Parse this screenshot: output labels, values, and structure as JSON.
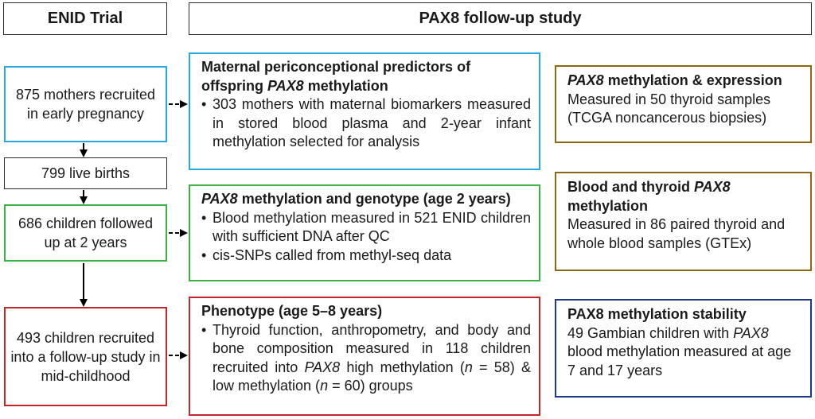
{
  "headers": {
    "enid": "ENID Trial",
    "pax8": "PAX8 follow-up study"
  },
  "left_boxes": [
    {
      "text": "875 mothers recruited in early pregnancy",
      "color": "#29a8e0"
    },
    {
      "text": "799 live births",
      "color": "#2a2a2a"
    },
    {
      "text": "686 children followed up at 2 years",
      "color": "#3cb043"
    },
    {
      "text": "493 children recruited into a follow-up study in mid-childhood",
      "color": "#c0272d"
    }
  ],
  "middle_boxes": [
    {
      "title_pre": "Maternal periconceptional predictors of offspring ",
      "title_em": "PAX8",
      "title_post": " methylation",
      "color": "#29a8e0",
      "bullets": [
        {
          "pre": "303 mothers with maternal biomarkers measured in stored blood plasma and 2-year infant methylation selected for analysis"
        }
      ]
    },
    {
      "title_pre": "",
      "title_em": "PAX8",
      "title_post": " methylation and genotype (age 2 years)",
      "color": "#3cb043",
      "bullets": [
        {
          "pre": "Blood methylation measured in 521 ENID children with sufficient DNA after QC"
        },
        {
          "pre": "cis-SNPs called from methyl-seq data"
        }
      ]
    },
    {
      "title_pre": "Phenotype (age 5–8 years)",
      "title_em": "",
      "title_post": "",
      "color": "#c0272d",
      "bullets": [
        {
          "pre": "Thyroid function, anthropometry, and body and bone composition measured in 118 children recruited into ",
          "em1": "PAX8",
          "mid1": " high methylation (",
          "em2": "n",
          "mid2": " = 58) & low methylation (",
          "em3": "n",
          "post": " = 60) groups"
        }
      ]
    }
  ],
  "right_boxes": [
    {
      "title_pre": "",
      "title_em": "PAX8",
      "title_post": " methylation & expression",
      "body_pre": "Measured in 50 thyroid samples (TCGA noncancerous biopsies)",
      "body_em": "",
      "body_post": "",
      "color": "#8b6914"
    },
    {
      "title_pre": "Blood and thyroid ",
      "title_em": "PAX8",
      "title_post": " methylation",
      "body_pre": "Measured in 86 paired thyroid and whole blood samples (GTEx)",
      "body_em": "",
      "body_post": "",
      "color": "#8b6914"
    },
    {
      "title_pre": "PAX8 methylation stability",
      "title_em": "",
      "title_post": "",
      "body_pre": "49 Gambian children with ",
      "body_em": "PAX8",
      "body_post": " blood methylation measured at age 7 and 17 years",
      "color": "#1f3a8a"
    }
  ]
}
